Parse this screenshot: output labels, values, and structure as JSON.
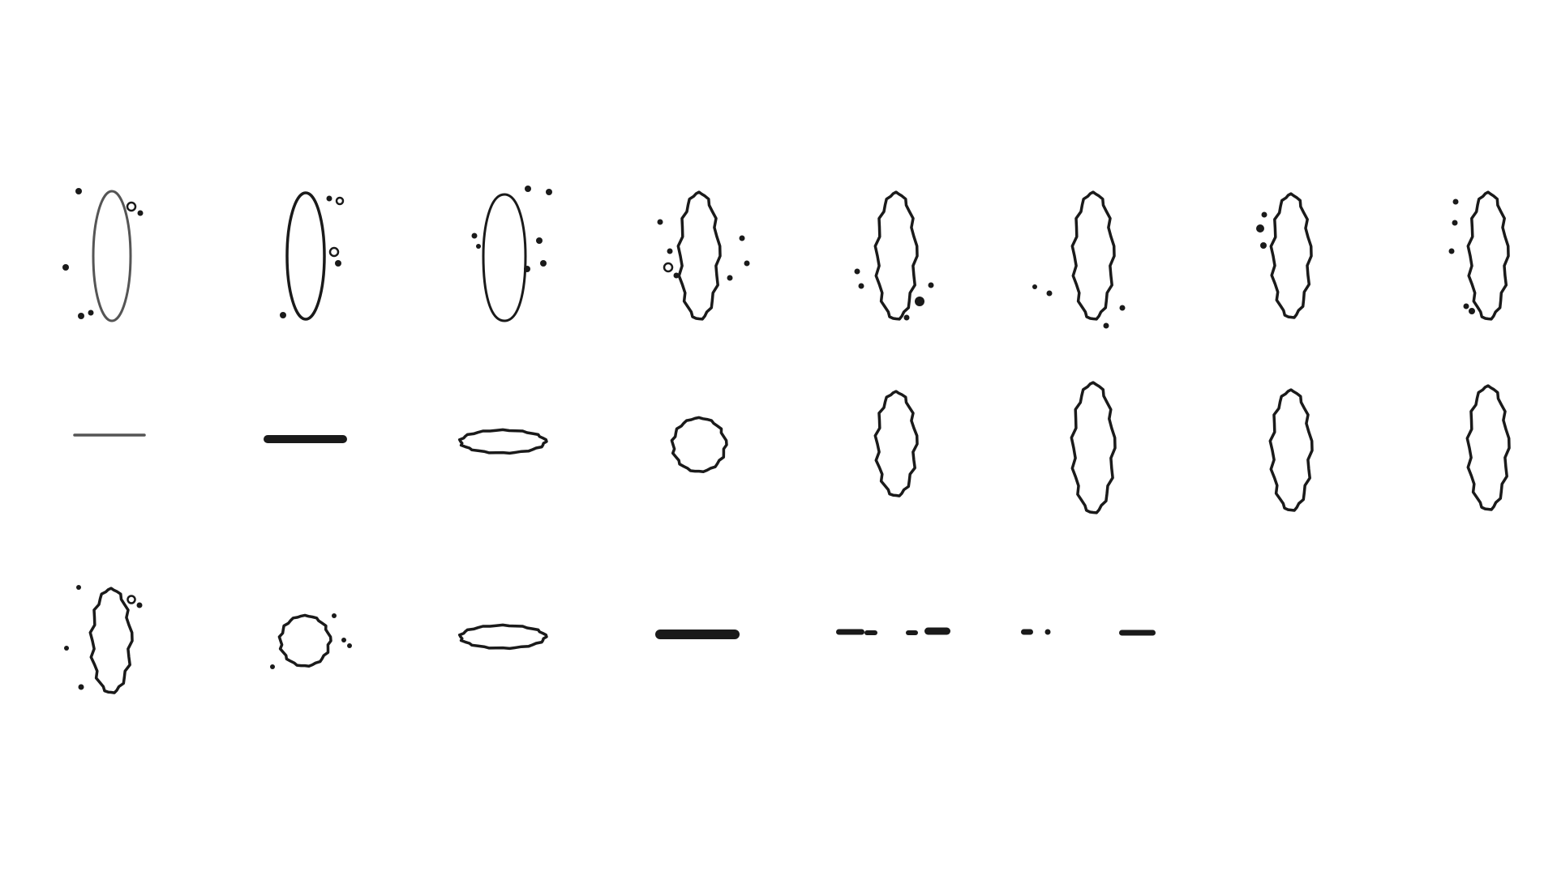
{
  "colors": {
    "background": "#ffffff",
    "stroke": "#1a1a1a",
    "stroke_light": "#555555"
  },
  "grid": {
    "rows": 3,
    "columns": 8,
    "row_cell_counts": [
      8,
      8,
      6
    ]
  }
}
